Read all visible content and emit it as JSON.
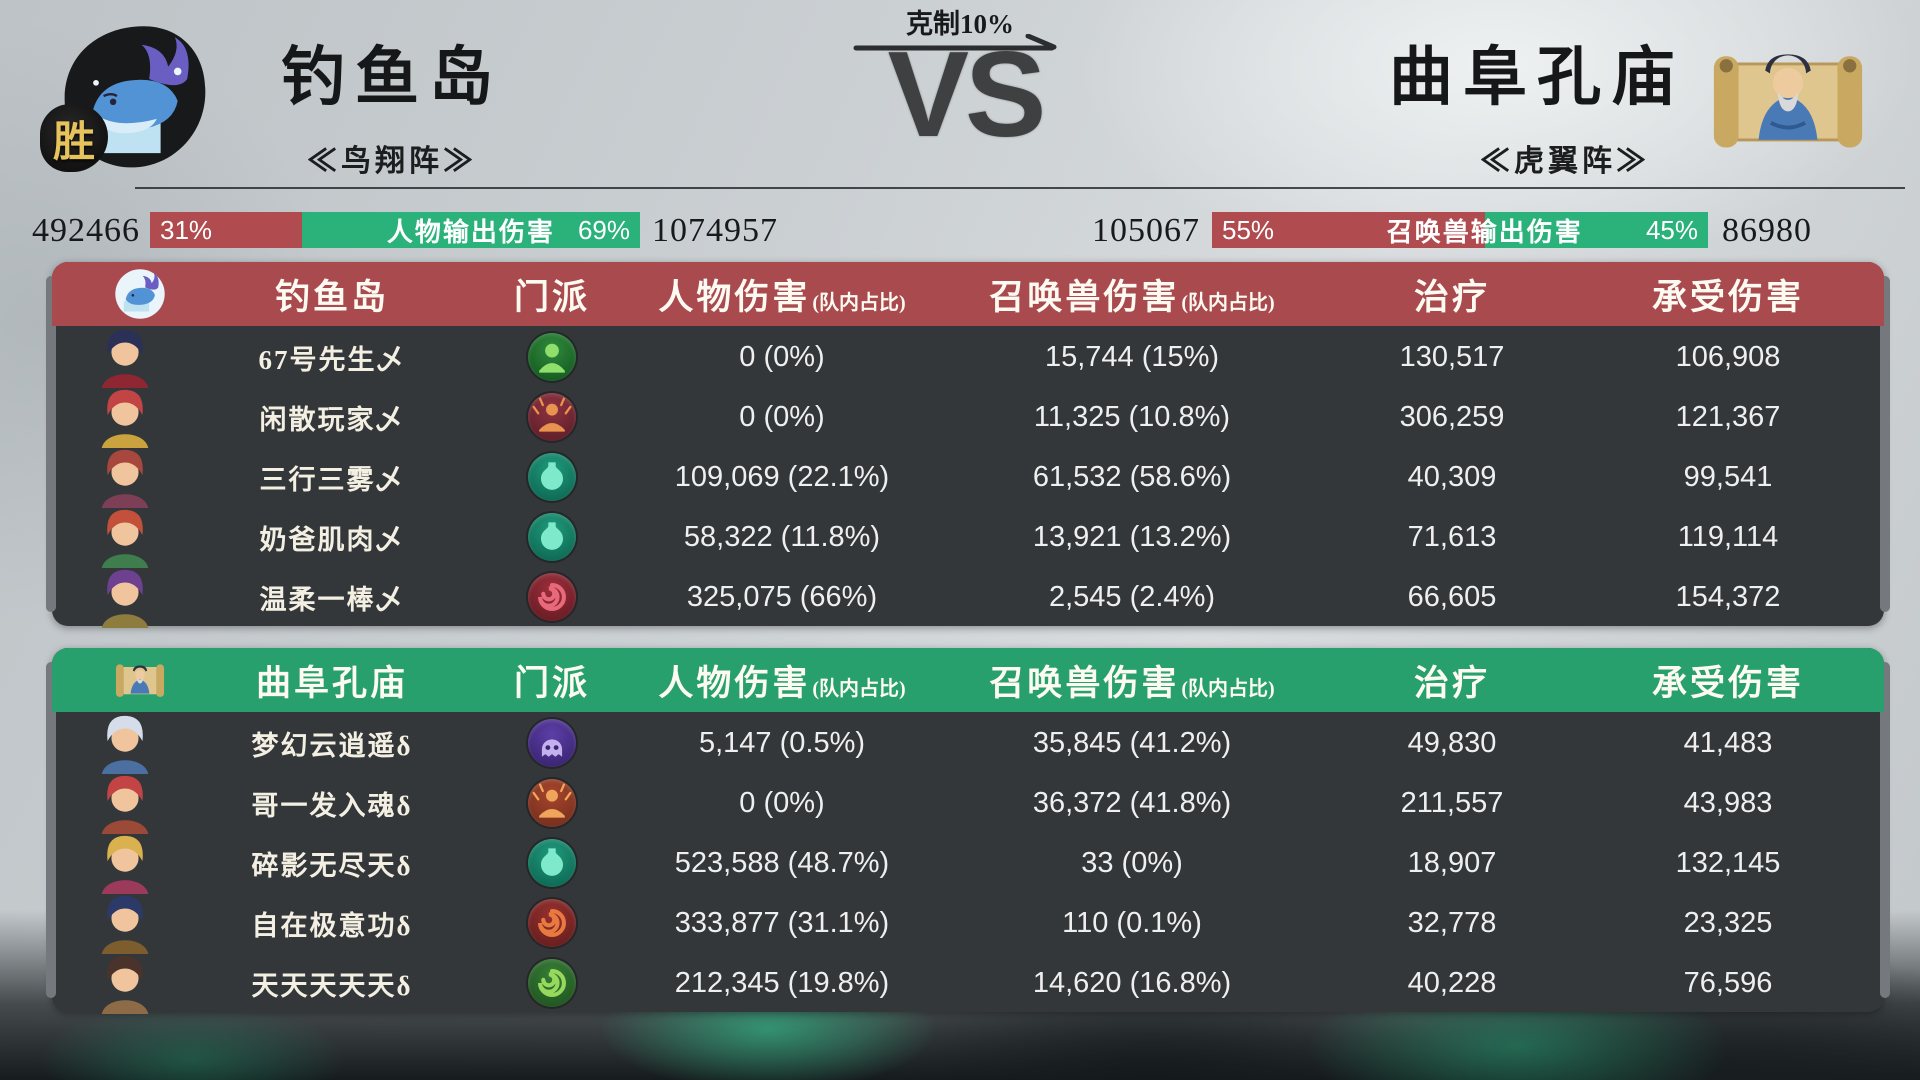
{
  "header": {
    "counter_label": "克制10%",
    "vs_label": "VS",
    "left_team": {
      "name": "钓鱼岛",
      "formation": "≪鸟翔阵≫",
      "result_badge": "胜",
      "avatar_icon": "whale-icon"
    },
    "right_team": {
      "name": "曲阜孔庙",
      "formation": "≪虎翼阵≫",
      "avatar_icon": "confucius-scroll-icon"
    }
  },
  "stat_bars": {
    "person": {
      "left_total": "492466",
      "left_pct": "31%",
      "left_ratio": 31,
      "label": "人物输出伤害",
      "right_pct": "69%",
      "right_ratio": 69,
      "right_total": "1074957"
    },
    "pet": {
      "left_total": "105067",
      "left_pct": "55%",
      "left_ratio": 55,
      "label": "召唤兽输出伤害",
      "right_pct": "45%",
      "right_ratio": 45,
      "right_total": "86980"
    }
  },
  "colors": {
    "red": "#b04c50",
    "green": "#2bb27b",
    "header_red": "#a94a4f",
    "header_green": "#27a06d",
    "table_bg": "#34373a",
    "gold": "#e6c35c"
  },
  "columns": {
    "school": "门派",
    "person_dmg": "人物伤害",
    "person_sub": "(队内占比)",
    "pet_dmg": "召唤兽伤害",
    "pet_sub": "(队内占比)",
    "heal": "治疗",
    "taken": "承受伤害"
  },
  "teams": [
    {
      "name": "钓鱼岛",
      "header_icon": "whale-icon",
      "rows": [
        {
          "player": "67号先生乄",
          "school_icon": "green-monk-sect-icon",
          "person": "0 (0%)",
          "pet": "15,744 (15%)",
          "heal": "130,517",
          "taken": "106,908"
        },
        {
          "player": "闲散玩家乄",
          "school_icon": "red-buddha-sect-icon",
          "person": "0 (0%)",
          "pet": "11,325 (10.8%)",
          "heal": "306,259",
          "taken": "121,367"
        },
        {
          "player": "三行三雾乄",
          "school_icon": "teal-vase-sect-icon",
          "person": "109,069 (22.1%)",
          "pet": "61,532 (58.6%)",
          "heal": "40,309",
          "taken": "99,541"
        },
        {
          "player": "奶爸肌肉乄",
          "school_icon": "teal-vase-sect-icon",
          "person": "58,322 (11.8%)",
          "pet": "13,921 (13.2%)",
          "heal": "71,613",
          "taken": "119,114"
        },
        {
          "player": "温柔一棒乄",
          "school_icon": "crimson-swirl-sect-icon",
          "person": "325,075 (66%)",
          "pet": "2,545 (2.4%)",
          "heal": "66,605",
          "taken": "154,372"
        }
      ]
    },
    {
      "name": "曲阜孔庙",
      "header_icon": "confucius-scroll-icon",
      "rows": [
        {
          "player": "梦幻云逍遥δ",
          "school_icon": "purple-ghost-sect-icon",
          "person": "5,147 (0.5%)",
          "pet": "35,845 (41.2%)",
          "heal": "49,830",
          "taken": "41,483"
        },
        {
          "player": "哥一发入魂δ",
          "school_icon": "orange-buddha-sect-icon",
          "person": "0 (0%)",
          "pet": "36,372 (41.8%)",
          "heal": "211,557",
          "taken": "43,983"
        },
        {
          "player": "碎影无尽天δ",
          "school_icon": "teal-vase-sect-icon",
          "person": "523,588 (48.7%)",
          "pet": "33 (0%)",
          "heal": "18,907",
          "taken": "132,145"
        },
        {
          "player": "自在极意功δ",
          "school_icon": "red-swirl-sect-icon",
          "person": "333,877 (31.1%)",
          "pet": "110 (0.1%)",
          "heal": "32,778",
          "taken": "23,325"
        },
        {
          "player": "天天天天天δ",
          "school_icon": "green-swirl-sect-icon",
          "person": "212,345 (19.8%)",
          "pet": "14,620 (16.8%)",
          "heal": "40,228",
          "taken": "76,596"
        }
      ]
    }
  ]
}
